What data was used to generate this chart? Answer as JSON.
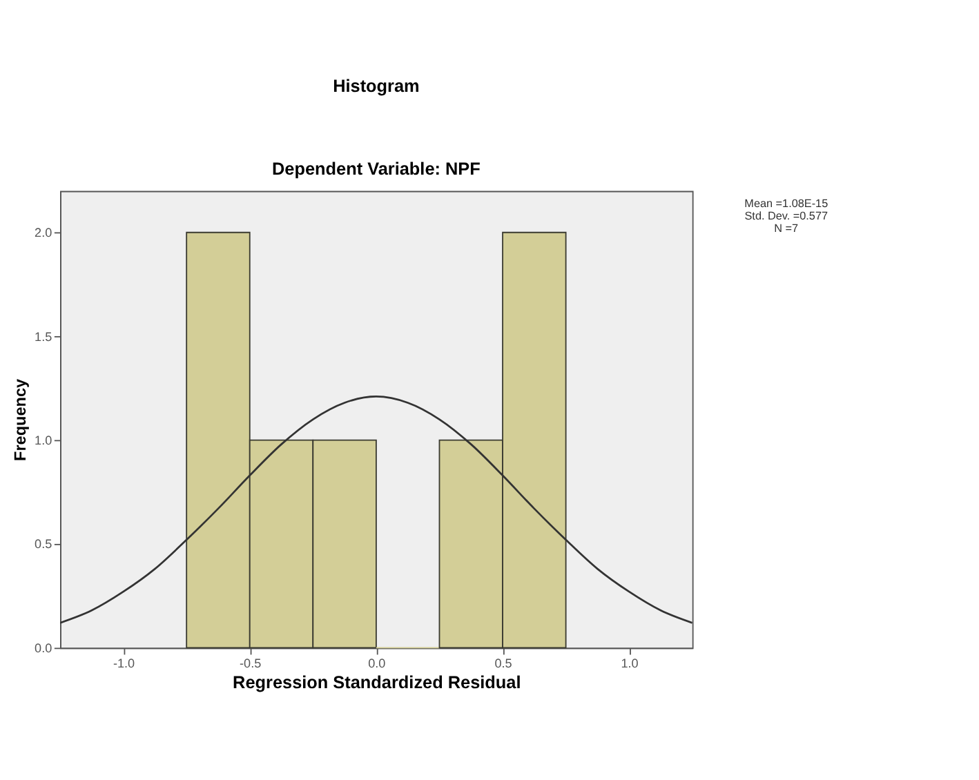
{
  "chart_data": {
    "type": "histogram",
    "title": "Histogram",
    "subtitle": "Dependent Variable: NPF",
    "xlabel": "Regression Standardized Residual",
    "ylabel": "Frequency",
    "bins": [
      -0.75,
      -0.5,
      -0.25,
      0.0,
      0.25,
      0.5,
      0.75
    ],
    "values": [
      2,
      1,
      1,
      0,
      1,
      2
    ],
    "color": "#d3ce97",
    "series": [
      {
        "type": "line",
        "color": "#333333",
        "x": [
          -1.25,
          -1.125,
          -1.0,
          -0.875,
          -0.75,
          -0.625,
          -0.5,
          -0.375,
          -0.25,
          -0.125,
          0.0,
          0.125,
          0.25,
          0.375,
          0.5,
          0.625,
          0.75,
          0.875,
          1.0,
          1.125,
          1.25
        ],
        "values": [
          0.12,
          0.18,
          0.27,
          0.38,
          0.52,
          0.67,
          0.83,
          0.98,
          1.1,
          1.18,
          1.21,
          1.18,
          1.1,
          0.98,
          0.83,
          0.67,
          0.52,
          0.38,
          0.27,
          0.18,
          0.12
        ]
      }
    ],
    "xlim": [
      -1.25,
      1.25
    ],
    "xticks": [
      {
        "value": -1.0,
        "label": "-1.0"
      },
      {
        "value": -0.5,
        "label": "-0.5"
      },
      {
        "value": 0.0,
        "label": "0.0"
      },
      {
        "value": 0.5,
        "label": "0.5"
      },
      {
        "value": 1.0,
        "label": "1.0"
      }
    ],
    "ylim": [
      0,
      2.2
    ],
    "yticks": [
      {
        "value": 0.0,
        "label": "0.0"
      },
      {
        "value": 0.5,
        "label": "0.5"
      },
      {
        "value": 1.0,
        "label": "1.0"
      },
      {
        "value": 1.5,
        "label": "1.5"
      },
      {
        "value": 2.0,
        "label": "2.0"
      }
    ],
    "annotations": [
      "Mean =1.08E-15",
      "Std. Dev. =0.577",
      "N =7"
    ],
    "grid": false
  }
}
